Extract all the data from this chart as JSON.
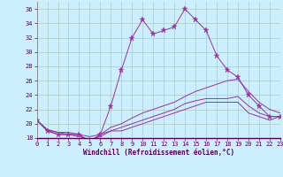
{
  "xlabel": "Windchill (Refroidissement éolien,°C)",
  "bg_color": "#cceeff",
  "grid_color": "#aaccbb",
  "line_color": "#993399",
  "xlim": [
    0,
    23
  ],
  "ylim": [
    18,
    37
  ],
  "ytick_vals": [
    18,
    20,
    22,
    24,
    26,
    28,
    30,
    32,
    34,
    36
  ],
  "xtick_vals": [
    0,
    1,
    2,
    3,
    4,
    5,
    6,
    7,
    8,
    9,
    10,
    11,
    12,
    13,
    14,
    15,
    16,
    17,
    18,
    19,
    20,
    21,
    22,
    23
  ],
  "series": [
    {
      "x": [
        0,
        1,
        2,
        3,
        4,
        5,
        6,
        7,
        8,
        9,
        10,
        11,
        12,
        13,
        14,
        15,
        16,
        17,
        18,
        19,
        20,
        21,
        22,
        23
      ],
      "y": [
        20.5,
        19.0,
        18.5,
        18.5,
        18.5,
        17.5,
        18.5,
        22.5,
        27.5,
        32.0,
        34.5,
        32.5,
        33.0,
        33.5,
        36.0,
        34.5,
        33.0,
        29.5,
        27.5,
        26.5,
        24.0,
        22.5,
        21.0,
        21.0
      ],
      "has_markers": true
    },
    {
      "x": [
        0,
        1,
        2,
        3,
        4,
        5,
        6,
        7,
        8,
        9,
        10,
        11,
        12,
        13,
        14,
        15,
        16,
        17,
        18,
        19,
        20,
        21,
        22,
        23
      ],
      "y": [
        20.5,
        19.2,
        18.8,
        18.8,
        18.5,
        18.2,
        18.5,
        19.5,
        20.0,
        20.8,
        21.5,
        22.0,
        22.5,
        23.0,
        23.8,
        24.5,
        25.0,
        25.5,
        26.0,
        26.2,
        24.5,
        23.0,
        22.0,
        21.5
      ],
      "has_markers": false
    },
    {
      "x": [
        0,
        1,
        2,
        3,
        4,
        5,
        6,
        7,
        8,
        9,
        10,
        11,
        12,
        13,
        14,
        15,
        16,
        17,
        18,
        19,
        20,
        21,
        22,
        23
      ],
      "y": [
        20.5,
        19.0,
        18.8,
        18.5,
        18.2,
        17.8,
        18.2,
        19.0,
        19.5,
        20.0,
        20.5,
        21.0,
        21.5,
        22.0,
        22.8,
        23.2,
        23.5,
        23.5,
        23.5,
        23.8,
        22.5,
        21.5,
        21.0,
        21.0
      ],
      "has_markers": false
    },
    {
      "x": [
        0,
        1,
        2,
        3,
        4,
        5,
        6,
        7,
        8,
        9,
        10,
        11,
        12,
        13,
        14,
        15,
        16,
        17,
        18,
        19,
        20,
        21,
        22,
        23
      ],
      "y": [
        20.5,
        19.0,
        18.5,
        18.5,
        18.5,
        17.5,
        18.5,
        19.0,
        19.0,
        19.5,
        20.0,
        20.5,
        21.0,
        21.5,
        22.0,
        22.5,
        23.0,
        23.0,
        23.0,
        23.0,
        21.5,
        21.0,
        20.5,
        21.0
      ],
      "has_markers": false
    }
  ]
}
